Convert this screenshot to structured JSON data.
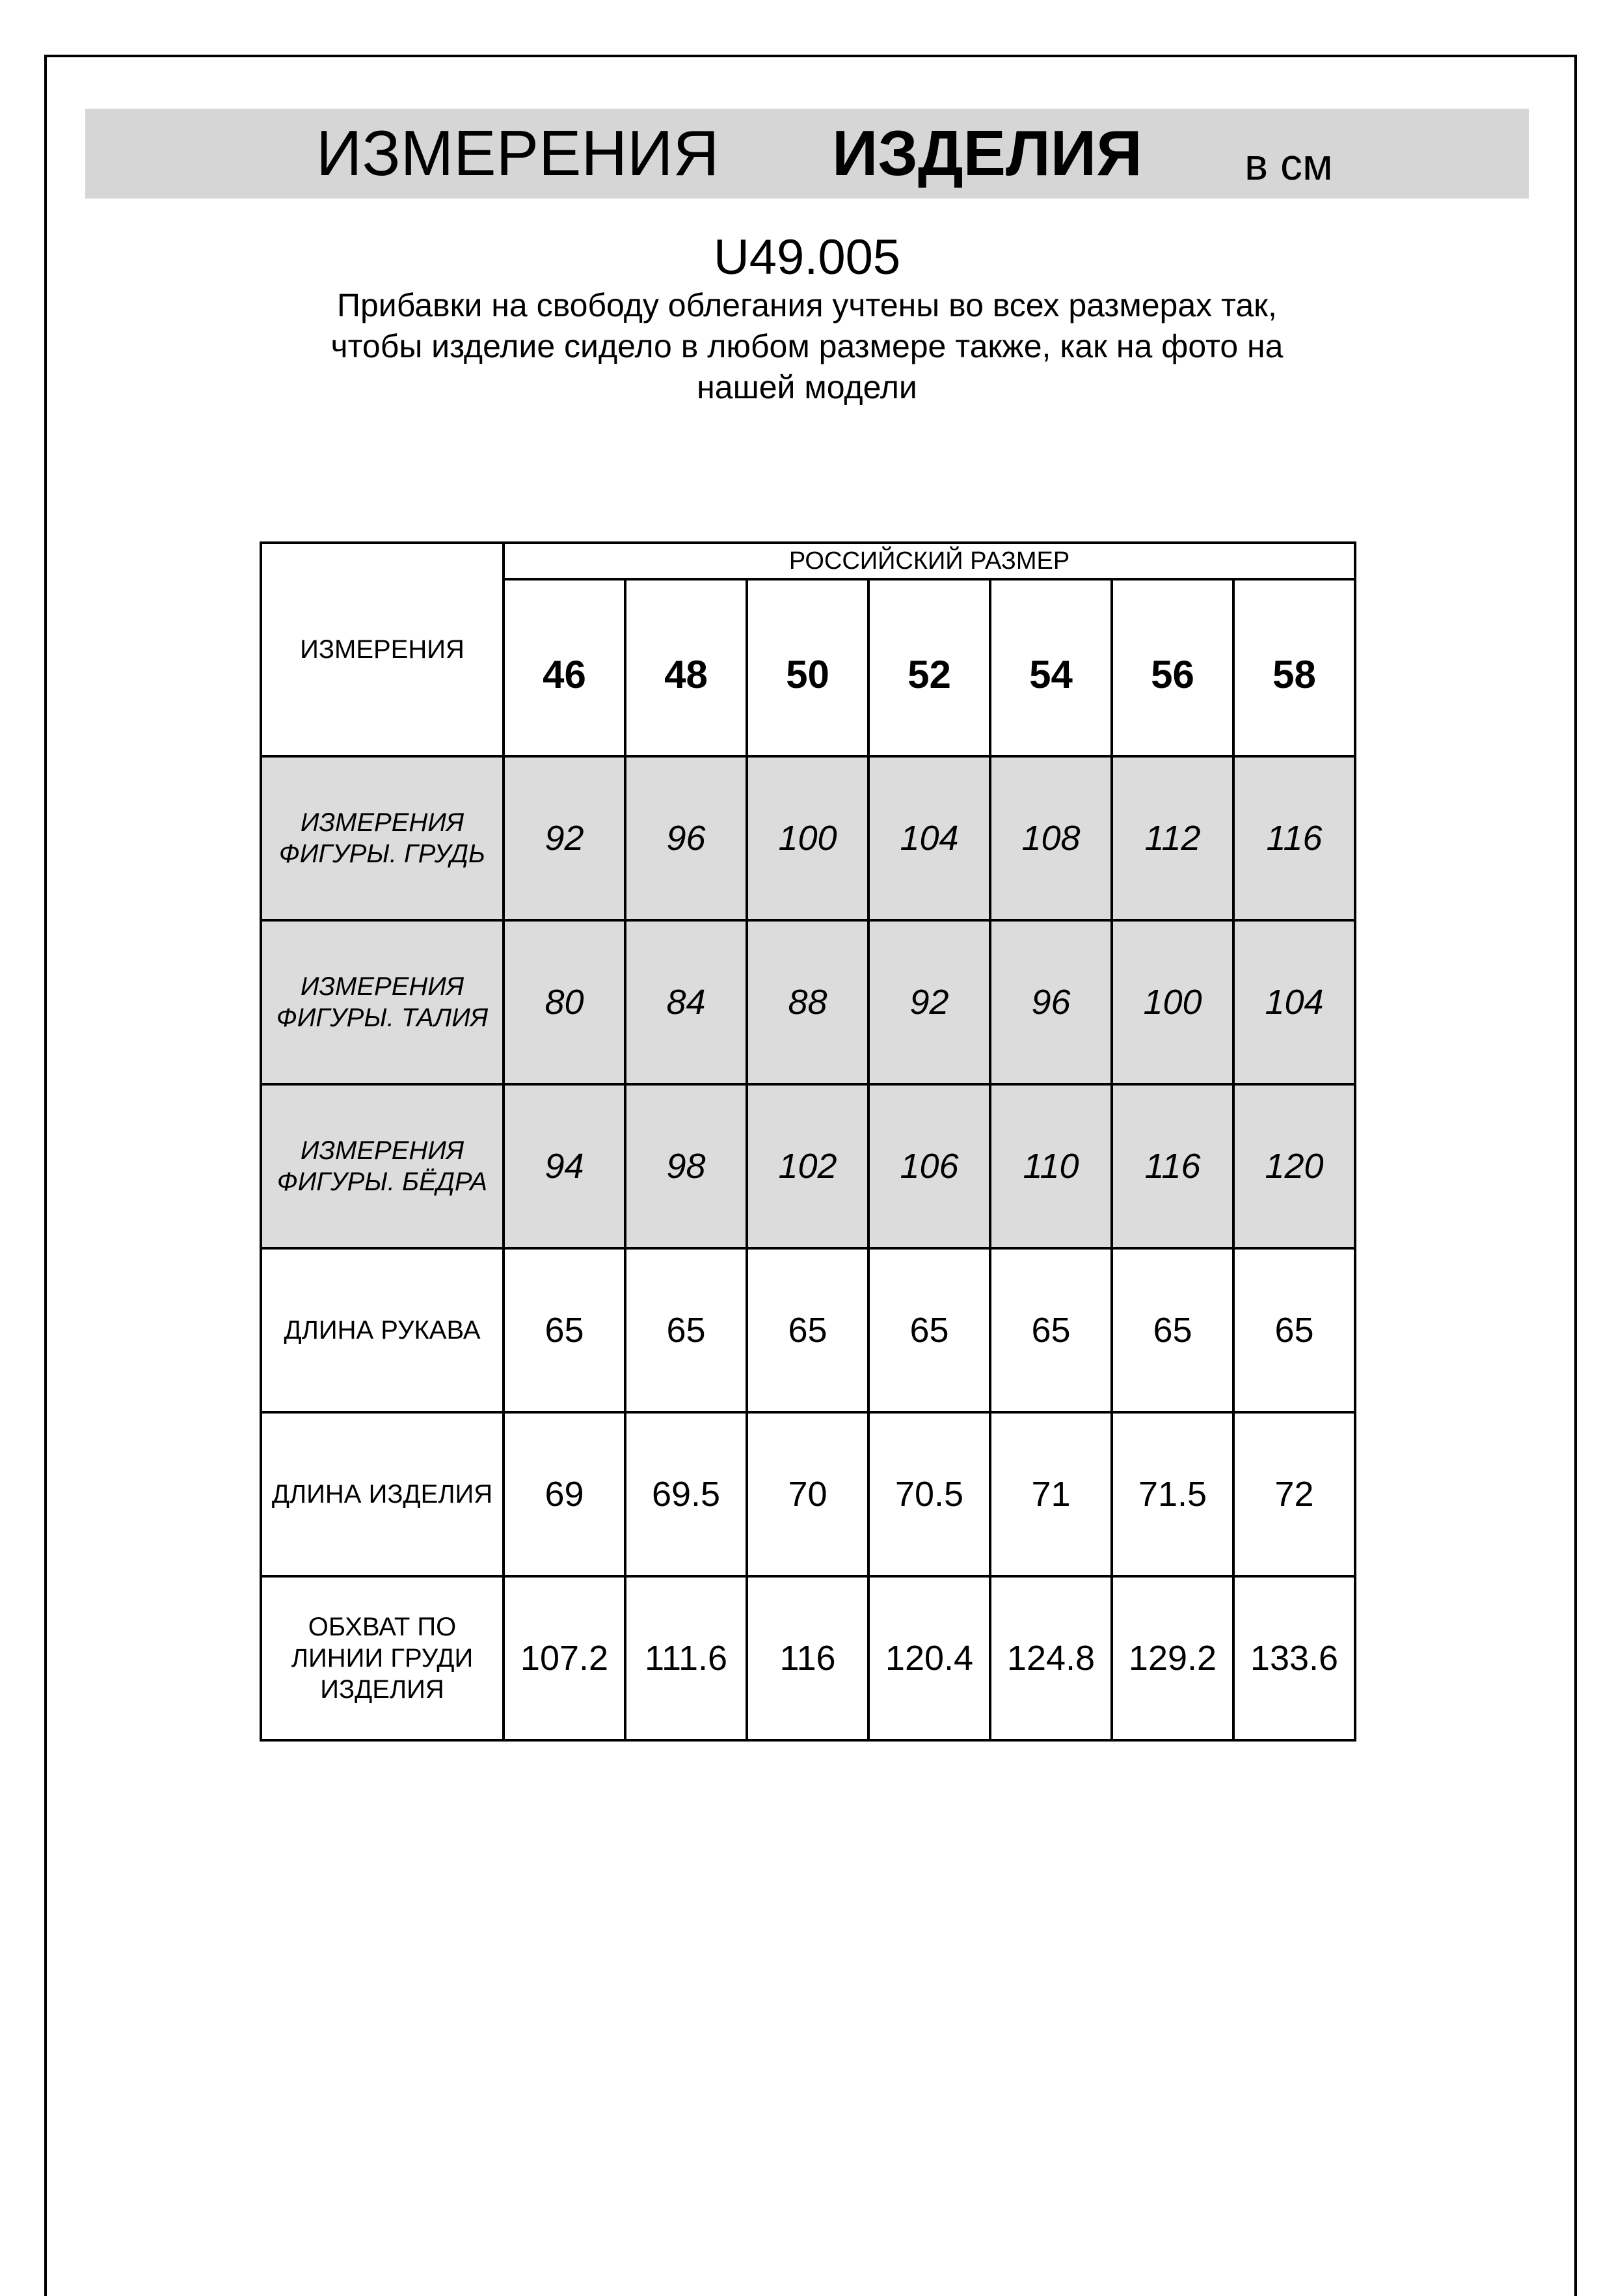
{
  "header": {
    "title_part1": "ИЗМЕРЕНИЯ",
    "title_part2": "ИЗДЕЛИЯ",
    "unit": "в см",
    "band_color": "#d6d6d6"
  },
  "product_code": "U49.005",
  "note_lines": [
    "Прибавки на свободу облегания учтены во всех размерах так,",
    "чтобы изделие сидело в любом размере также, как на фото на",
    "нашей модели"
  ],
  "table": {
    "corner_label": "ИЗМЕРЕНИЯ",
    "group_header": "РОССИЙСКИЙ РАЗМЕР",
    "sizes": [
      "46",
      "48",
      "50",
      "52",
      "54",
      "56",
      "58"
    ],
    "shade_color": "#dcdcdc",
    "rows": [
      {
        "label_lines": [
          "ИЗМЕРЕНИЯ",
          "ФИГУРЫ. ГРУДЬ"
        ],
        "values": [
          "92",
          "96",
          "100",
          "104",
          "108",
          "112",
          "116"
        ],
        "shaded": true
      },
      {
        "label_lines": [
          "ИЗМЕРЕНИЯ",
          "ФИГУРЫ. ТАЛИЯ"
        ],
        "values": [
          "80",
          "84",
          "88",
          "92",
          "96",
          "100",
          "104"
        ],
        "shaded": true
      },
      {
        "label_lines": [
          "ИЗМЕРЕНИЯ",
          "ФИГУРЫ. БЁДРА"
        ],
        "values": [
          "94",
          "98",
          "102",
          "106",
          "110",
          "116",
          "120"
        ],
        "shaded": true
      },
      {
        "label_lines": [
          "ДЛИНА РУКАВА"
        ],
        "values": [
          "65",
          "65",
          "65",
          "65",
          "65",
          "65",
          "65"
        ],
        "shaded": false
      },
      {
        "label_lines": [
          "ДЛИНА ИЗДЕЛИЯ"
        ],
        "values": [
          "69",
          "69.5",
          "70",
          "70.5",
          "71",
          "71.5",
          "72"
        ],
        "shaded": false
      },
      {
        "label_lines": [
          "ОБХВАТ ПО",
          "ЛИНИИ ГРУДИ",
          "ИЗДЕЛИЯ"
        ],
        "values": [
          "107.2",
          "111.6",
          "116",
          "120.4",
          "124.8",
          "129.2",
          "133.6"
        ],
        "shaded": false
      }
    ]
  }
}
